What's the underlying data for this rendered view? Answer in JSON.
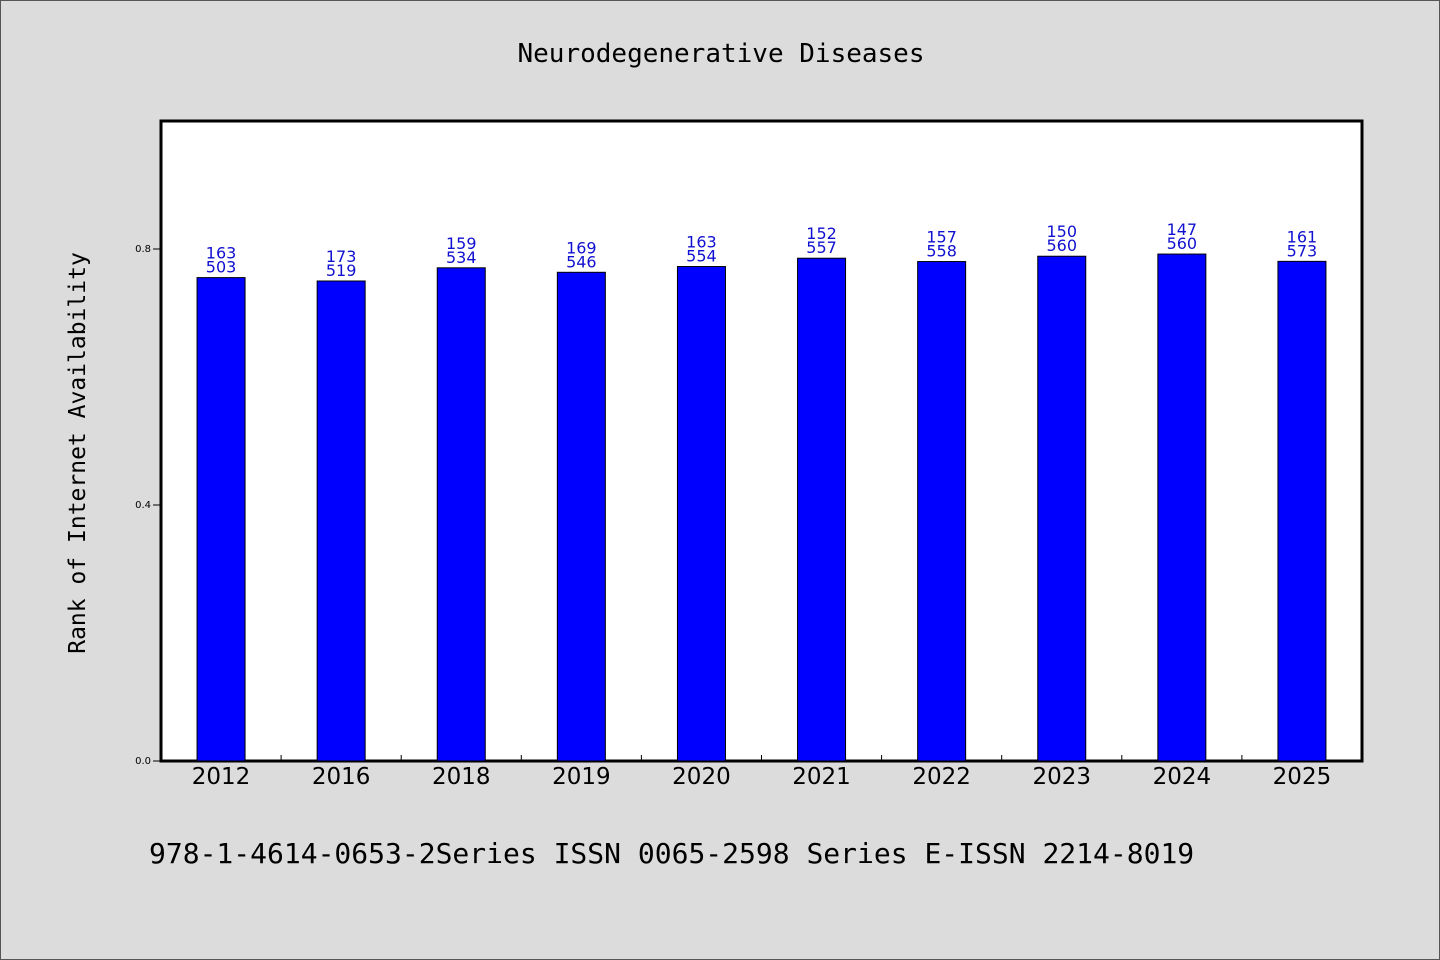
{
  "chart_data": {
    "type": "bar",
    "title": "Neurodegenerative Diseases",
    "xlabel": "",
    "ylabel": "Rank of Internet Availability",
    "footer": "978-1-4614-0653-2Series ISSN 0065-2598 Series E-ISSN 2214-8019",
    "categories": [
      "2012",
      "2016",
      "2018",
      "2019",
      "2020",
      "2021",
      "2022",
      "2023",
      "2024",
      "2025"
    ],
    "values": [
      0.7553,
      0.75,
      0.7706,
      0.7636,
      0.7726,
      0.7856,
      0.7804,
      0.7887,
      0.7921,
      0.7807
    ],
    "labels_top": [
      "163",
      "173",
      "159",
      "169",
      "163",
      "152",
      "157",
      "150",
      "147",
      "161"
    ],
    "labels_bottom": [
      "503",
      "519",
      "534",
      "546",
      "554",
      "557",
      "558",
      "560",
      "560",
      "573"
    ],
    "yticks": [
      "0.0",
      "0.4",
      "0.8"
    ],
    "ylim": [
      0,
      1
    ],
    "grid": false,
    "bar_color": "#0000ff",
    "label_color": "#1010d0"
  }
}
